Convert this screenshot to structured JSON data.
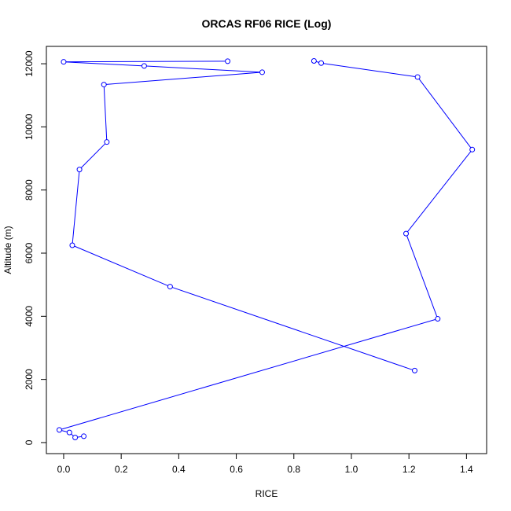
{
  "chart_data": {
    "type": "line",
    "title": "ORCAS RF06 RICE (Log)",
    "xlabel": "RICE",
    "ylabel": "Altitude (m)",
    "xlim": [
      -0.06,
      1.47
    ],
    "ylim": [
      -350,
      12550
    ],
    "xticks": [
      0.0,
      0.2,
      0.4,
      0.6,
      0.8,
      1.0,
      1.2,
      1.4
    ],
    "xtick_labels": [
      "0.0",
      "0.2",
      "0.4",
      "0.6",
      "0.8",
      "1.0",
      "1.2",
      "1.4"
    ],
    "yticks": [
      0,
      2000,
      4000,
      6000,
      8000,
      10000,
      12000
    ],
    "ytick_labels": [
      "0",
      "2000",
      "4000",
      "6000",
      "8000",
      "10000",
      "12000"
    ],
    "grid": false,
    "legend": "none",
    "color": "#0000ff",
    "series": [
      {
        "x": [
          0.07,
          0.04,
          0.02,
          -0.015,
          1.3,
          1.19,
          1.42,
          1.23,
          0.895,
          0.87
        ],
        "y": [
          200,
          160,
          320,
          400,
          3920,
          6620,
          9280,
          11580,
          12020,
          12090
        ]
      },
      {
        "x": [
          1.22,
          0.37,
          0.03,
          0.055,
          0.15,
          0.14,
          0.69,
          0.28,
          0.0,
          0.57
        ],
        "y": [
          2280,
          4940,
          6250,
          8650,
          9520,
          11340,
          11730,
          11930,
          12060,
          12080
        ]
      }
    ]
  }
}
